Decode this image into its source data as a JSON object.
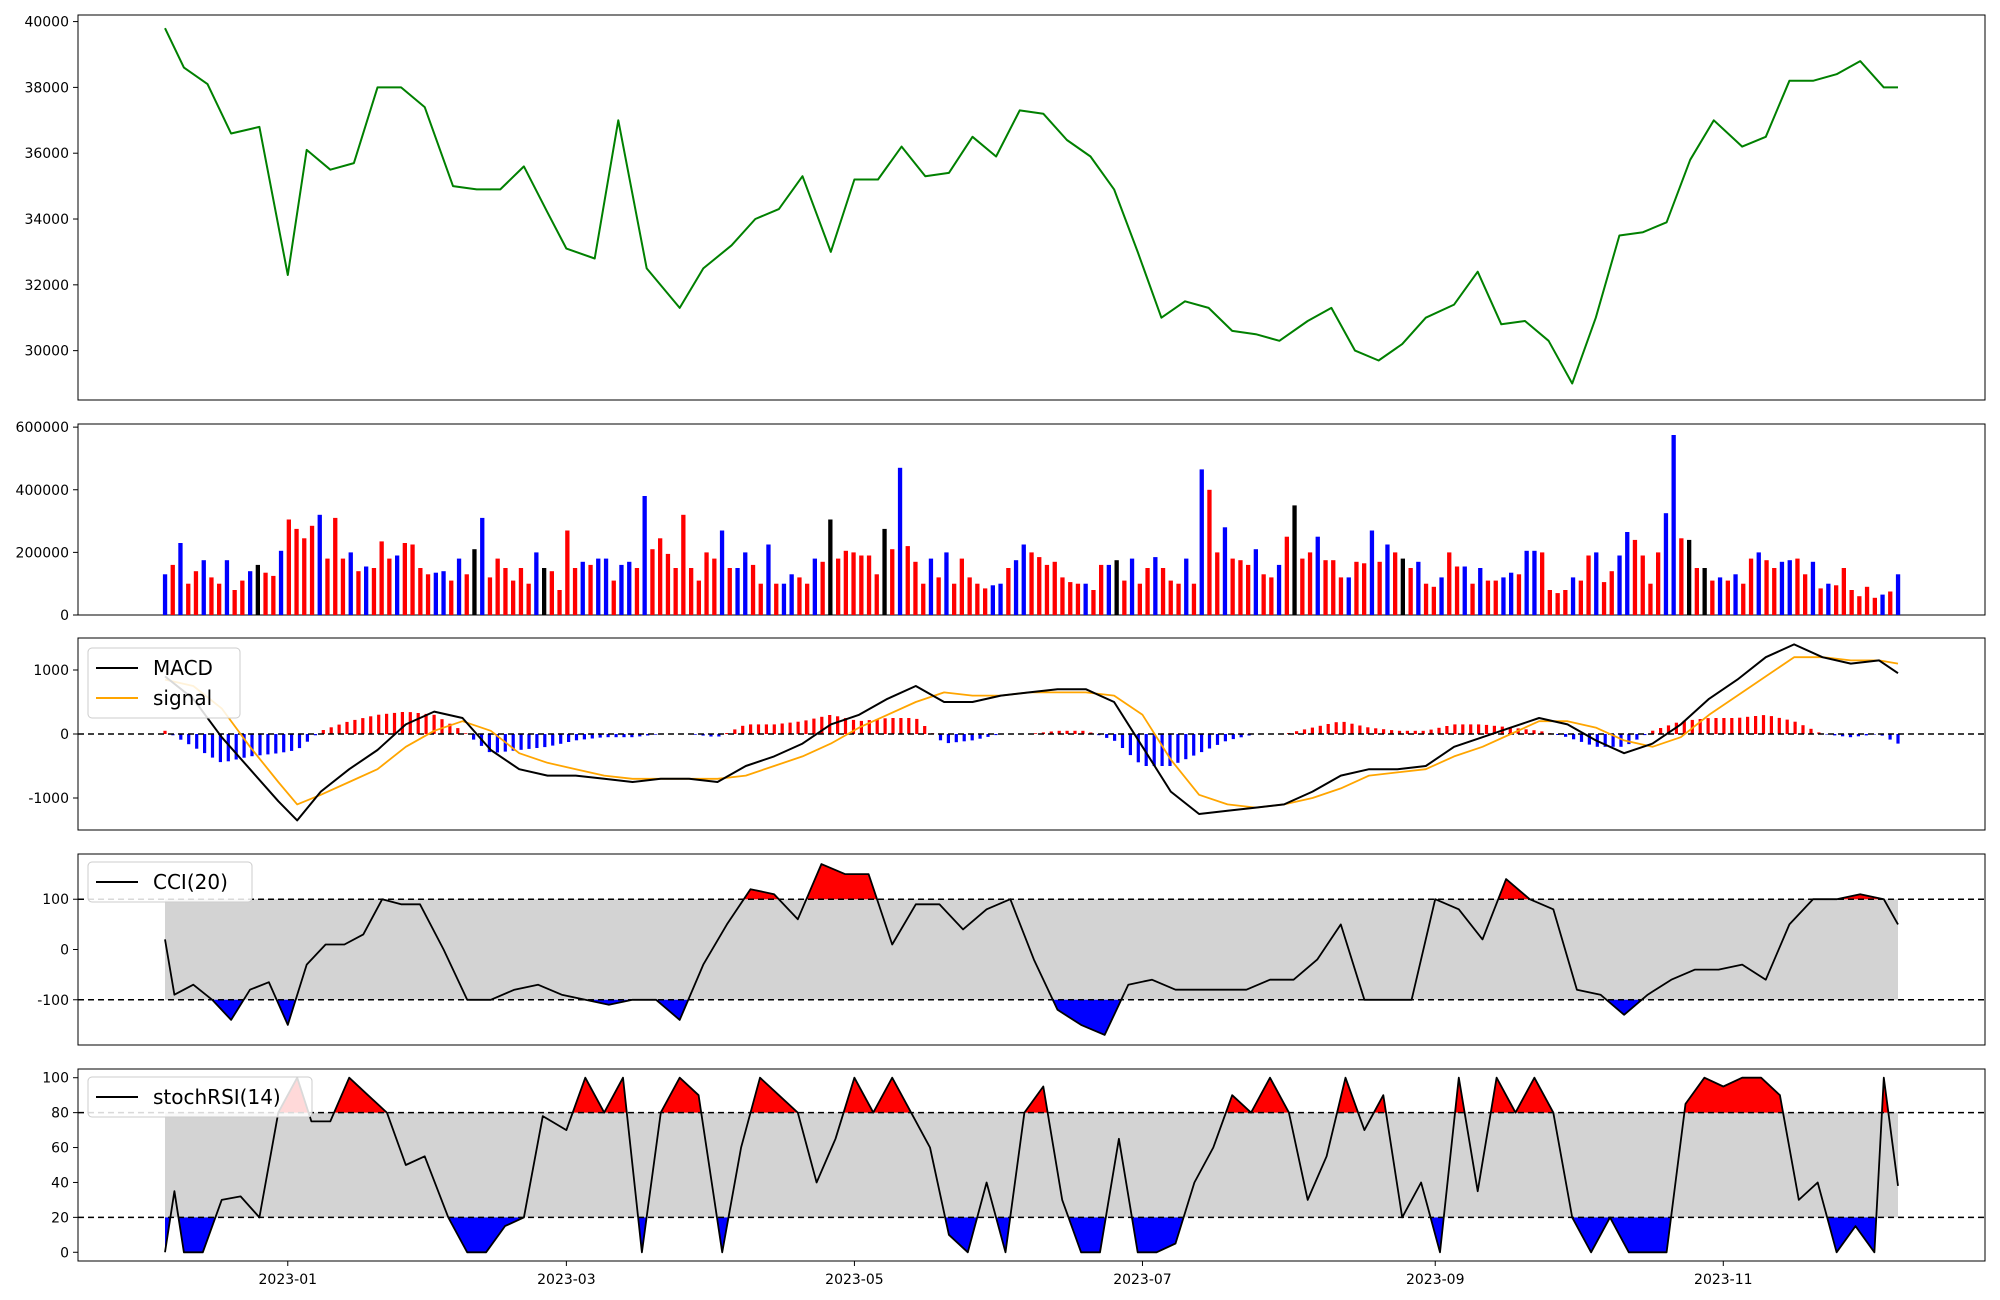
{
  "chart_data": [
    {
      "type": "line",
      "panel": "price",
      "x_dates": [
        "2022-12-06",
        "2022-12-10",
        "2022-12-15",
        "2022-12-20",
        "2022-12-26",
        "2023-01-01",
        "2023-01-05",
        "2023-01-10",
        "2023-01-15",
        "2023-01-20",
        "2023-01-25",
        "2023-01-30",
        "2023-02-05",
        "2023-02-10",
        "2023-02-15",
        "2023-02-20",
        "2023-02-25",
        "2023-03-01",
        "2023-03-07",
        "2023-03-12",
        "2023-03-18",
        "2023-03-25",
        "2023-03-30",
        "2023-04-05",
        "2023-04-10",
        "2023-04-15",
        "2023-04-20",
        "2023-04-26",
        "2023-05-01",
        "2023-05-06",
        "2023-05-11",
        "2023-05-16",
        "2023-05-21",
        "2023-05-26",
        "2023-05-31",
        "2023-06-05",
        "2023-06-10",
        "2023-06-15",
        "2023-06-20",
        "2023-06-25",
        "2023-06-30",
        "2023-07-05",
        "2023-07-10",
        "2023-07-15",
        "2023-07-20",
        "2023-07-25",
        "2023-07-30",
        "2023-08-05",
        "2023-08-10",
        "2023-08-15",
        "2023-08-20",
        "2023-08-25",
        "2023-08-30",
        "2023-09-05",
        "2023-09-10",
        "2023-09-15",
        "2023-09-20",
        "2023-09-25",
        "2023-09-30",
        "2023-10-05",
        "2023-10-10",
        "2023-10-15",
        "2023-10-20",
        "2023-10-25",
        "2023-10-30",
        "2023-11-05",
        "2023-11-10",
        "2023-11-15",
        "2023-11-20",
        "2023-11-25",
        "2023-11-30",
        "2023-12-05",
        "2023-12-08"
      ],
      "series": [
        {
          "values": [
            39800,
            38600,
            38100,
            36600,
            36800,
            32300,
            36100,
            35500,
            35700,
            38000,
            38000,
            37400,
            35000,
            34900,
            34900,
            35600,
            34200,
            33100,
            32800,
            37000,
            32500,
            31300,
            32500,
            33200,
            34000,
            34300,
            35300,
            33000,
            35200,
            35200,
            36200,
            35300,
            35400,
            36500,
            35900,
            37300,
            37200,
            36400,
            35900,
            34900,
            33000,
            31000,
            31500,
            31300,
            30600,
            30500,
            30300,
            30900,
            31300,
            30000,
            29700,
            30200,
            31000,
            31400,
            32400,
            30800,
            30900,
            30300,
            29000,
            31000,
            33500,
            33600,
            33900,
            35800,
            37000,
            36200,
            36500,
            38200,
            38200,
            38400,
            38800,
            38000,
            38000
          ]
        }
      ],
      "ylim": [
        28500,
        40200
      ],
      "yticks": [
        "30000",
        "32000",
        "34000",
        "36000",
        "38000",
        "40000"
      ]
    },
    {
      "type": "bar",
      "panel": "volume",
      "values": [
        130000,
        160000,
        230000,
        100000,
        140000,
        175000,
        120000,
        100000,
        175000,
        80000,
        110000,
        140000,
        160000,
        135000,
        125000,
        205000,
        305000,
        275000,
        245000,
        285000,
        320000,
        180000,
        310000,
        180000,
        200000,
        140000,
        155000,
        150000,
        235000,
        180000,
        190000,
        230000,
        225000,
        150000,
        130000,
        135000,
        140000,
        110000,
        180000,
        130000,
        210000,
        310000,
        120000,
        180000,
        150000,
        110000,
        150000,
        100000,
        200000,
        150000,
        140000,
        80000,
        270000,
        150000,
        170000,
        160000,
        180000,
        180000,
        110000,
        160000,
        170000,
        150000,
        380000,
        210000,
        245000,
        195000,
        150000,
        320000,
        150000,
        110000,
        200000,
        180000,
        270000,
        150000,
        150000,
        200000,
        160000,
        100000,
        225000,
        100000,
        100000,
        130000,
        120000,
        100000,
        180000,
        170000,
        305000,
        180000,
        205000,
        200000,
        190000,
        190000,
        130000,
        275000,
        210000,
        470000,
        220000,
        170000,
        100000,
        180000,
        120000,
        200000,
        100000,
        180000,
        120000,
        100000,
        85000,
        95000,
        100000,
        150000,
        175000,
        225000,
        200000,
        185000,
        160000,
        170000,
        120000,
        105000,
        100000,
        100000,
        80000,
        160000,
        160000,
        175000,
        110000,
        180000,
        100000,
        150000,
        185000,
        150000,
        110000,
        100000,
        180000,
        100000,
        465000,
        400000,
        200000,
        280000,
        180000,
        175000,
        160000,
        210000,
        130000,
        120000,
        160000,
        250000,
        350000,
        180000,
        200000,
        250000,
        175000,
        175000,
        120000,
        120000,
        170000,
        165000,
        270000,
        170000,
        225000,
        200000,
        180000,
        150000,
        170000,
        100000,
        90000,
        120000,
        200000,
        155000,
        155000,
        100000,
        150000,
        110000,
        110000,
        120000,
        135000,
        130000,
        205000,
        205000,
        200000,
        80000,
        70000,
        80000,
        120000,
        110000,
        190000,
        200000,
        105000,
        140000,
        190000,
        265000,
        240000,
        190000,
        100000,
        200000,
        325000,
        575000,
        245000,
        240000,
        150000,
        150000,
        110000,
        120000,
        110000,
        130000,
        100000,
        180000,
        200000,
        175000,
        150000,
        170000,
        175000,
        180000,
        130000,
        170000,
        85000,
        100000,
        95000,
        150000,
        80000,
        60000,
        90000,
        55000,
        65000,
        75000,
        130000
      ],
      "colors": [
        "blue",
        "red",
        "black"
      ],
      "ylim": [
        0,
        610000
      ],
      "yticks": [
        "0",
        "200000",
        "400000",
        "600000"
      ]
    },
    {
      "type": "line",
      "panel": "macd",
      "x_dates": [
        "2022-12-06",
        "2022-12-12",
        "2022-12-18",
        "2022-12-24",
        "2022-12-30",
        "2023-01-03",
        "2023-01-08",
        "2023-01-14",
        "2023-01-20",
        "2023-01-26",
        "2023-02-01",
        "2023-02-07",
        "2023-02-13",
        "2023-02-19",
        "2023-02-25",
        "2023-03-03",
        "2023-03-09",
        "2023-03-15",
        "2023-03-21",
        "2023-03-27",
        "2023-04-02",
        "2023-04-08",
        "2023-04-14",
        "2023-04-20",
        "2023-04-26",
        "2023-05-02",
        "2023-05-08",
        "2023-05-14",
        "2023-05-20",
        "2023-05-26",
        "2023-06-01",
        "2023-06-07",
        "2023-06-13",
        "2023-06-19",
        "2023-06-25",
        "2023-07-01",
        "2023-07-07",
        "2023-07-13",
        "2023-07-19",
        "2023-07-25",
        "2023-07-31",
        "2023-08-06",
        "2023-08-12",
        "2023-08-18",
        "2023-08-24",
        "2023-08-30",
        "2023-09-05",
        "2023-09-11",
        "2023-09-17",
        "2023-09-23",
        "2023-09-29",
        "2023-10-05",
        "2023-10-11",
        "2023-10-17",
        "2023-10-23",
        "2023-10-29",
        "2023-11-04",
        "2023-11-10",
        "2023-11-16",
        "2023-11-22",
        "2023-11-28",
        "2023-12-04",
        "2023-12-08"
      ],
      "series": [
        {
          "name": "MACD",
          "values": [
            900,
            550,
            -50,
            -550,
            -1050,
            -1350,
            -900,
            -550,
            -250,
            150,
            350,
            250,
            -250,
            -550,
            -650,
            -650,
            -700,
            -750,
            -700,
            -700,
            -750,
            -500,
            -350,
            -150,
            150,
            300,
            550,
            750,
            500,
            500,
            600,
            650,
            700,
            700,
            500,
            -200,
            -900,
            -1250,
            -1200,
            -1150,
            -1100,
            -900,
            -650,
            -550,
            -550,
            -500,
            -200,
            -50,
            100,
            250,
            150,
            -100,
            -300,
            -150,
            150,
            550,
            850,
            1200,
            1400,
            1200,
            1100,
            1150,
            950
          ]
        },
        {
          "name": "signal",
          "values": [
            850,
            750,
            400,
            -200,
            -750,
            -1100,
            -950,
            -750,
            -550,
            -200,
            50,
            200,
            50,
            -300,
            -450,
            -550,
            -650,
            -700,
            -700,
            -700,
            -700,
            -650,
            -500,
            -350,
            -150,
            100,
            300,
            500,
            650,
            600,
            600,
            650,
            650,
            650,
            600,
            300,
            -400,
            -950,
            -1100,
            -1150,
            -1100,
            -1000,
            -850,
            -650,
            -600,
            -550,
            -350,
            -200,
            0,
            200,
            200,
            100,
            -100,
            -200,
            -50,
            300,
            600,
            900,
            1200,
            1200,
            1150,
            1150,
            1100
          ]
        }
      ],
      "histogram_colors": [
        "red",
        "blue"
      ],
      "ylim": [
        -1500,
        1500
      ],
      "yticks": [
        "-1000",
        "0",
        "1000"
      ]
    },
    {
      "type": "area",
      "panel": "cci",
      "x_dates": [
        "2022-12-06",
        "2022-12-08",
        "2022-12-12",
        "2022-12-16",
        "2022-12-20",
        "2022-12-24",
        "2022-12-28",
        "2023-01-01",
        "2023-01-05",
        "2023-01-09",
        "2023-01-13",
        "2023-01-17",
        "2023-01-21",
        "2023-01-25",
        "2023-01-29",
        "2023-02-03",
        "2023-02-08",
        "2023-02-13",
        "2023-02-18",
        "2023-02-23",
        "2023-02-28",
        "2023-03-05",
        "2023-03-10",
        "2023-03-15",
        "2023-03-20",
        "2023-03-25",
        "2023-03-30",
        "2023-04-04",
        "2023-04-09",
        "2023-04-14",
        "2023-04-19",
        "2023-04-24",
        "2023-04-29",
        "2023-05-04",
        "2023-05-09",
        "2023-05-14",
        "2023-05-19",
        "2023-05-24",
        "2023-05-29",
        "2023-06-03",
        "2023-06-08",
        "2023-06-13",
        "2023-06-18",
        "2023-06-23",
        "2023-06-28",
        "2023-07-03",
        "2023-07-08",
        "2023-07-13",
        "2023-07-18",
        "2023-07-23",
        "2023-07-28",
        "2023-08-02",
        "2023-08-07",
        "2023-08-12",
        "2023-08-17",
        "2023-08-22",
        "2023-08-27",
        "2023-09-01",
        "2023-09-06",
        "2023-09-11",
        "2023-09-16",
        "2023-09-21",
        "2023-09-26",
        "2023-10-01",
        "2023-10-06",
        "2023-10-11",
        "2023-10-16",
        "2023-10-21",
        "2023-10-26",
        "2023-10-31",
        "2023-11-05",
        "2023-11-10",
        "2023-11-15",
        "2023-11-20",
        "2023-11-25",
        "2023-11-30",
        "2023-12-05",
        "2023-12-08"
      ],
      "series": [
        {
          "name": "CCI(20)",
          "values": [
            20,
            -90,
            -70,
            -100,
            -140,
            -80,
            -65,
            -150,
            -30,
            10,
            10,
            30,
            100,
            90,
            90,
            0,
            -100,
            -100,
            -80,
            -70,
            -90,
            -100,
            -110,
            -100,
            -100,
            -140,
            -30,
            50,
            120,
            110,
            60,
            170,
            150,
            150,
            10,
            90,
            90,
            40,
            80,
            100,
            -20,
            -120,
            -150,
            -170,
            -70,
            -60,
            -80,
            -80,
            -80,
            -80,
            -60,
            -60,
            -20,
            50,
            -100,
            -100,
            -100,
            100,
            80,
            20,
            140,
            100,
            80,
            -80,
            -90,
            -130,
            -90,
            -60,
            -40,
            -40,
            -30,
            -60,
            50,
            100,
            100,
            110,
            100,
            50
          ]
        }
      ],
      "thresholds": [
        "100",
        "-100"
      ],
      "ylim": [
        -190,
        190
      ],
      "yticks": [
        "-100",
        "0",
        "100"
      ]
    },
    {
      "type": "area",
      "panel": "stochrsi",
      "x_dates": [
        "2022-12-06",
        "2022-12-08",
        "2022-12-10",
        "2022-12-14",
        "2022-12-18",
        "2022-12-22",
        "2022-12-26",
        "2022-12-30",
        "2023-01-03",
        "2023-01-06",
        "2023-01-10",
        "2023-01-14",
        "2023-01-18",
        "2023-01-22",
        "2023-01-26",
        "2023-01-30",
        "2023-02-04",
        "2023-02-08",
        "2023-02-12",
        "2023-02-16",
        "2023-02-20",
        "2023-02-24",
        "2023-03-01",
        "2023-03-05",
        "2023-03-09",
        "2023-03-13",
        "2023-03-17",
        "2023-03-21",
        "2023-03-25",
        "2023-03-29",
        "2023-04-03",
        "2023-04-07",
        "2023-04-11",
        "2023-04-15",
        "2023-04-19",
        "2023-04-23",
        "2023-04-27",
        "2023-05-01",
        "2023-05-05",
        "2023-05-09",
        "2023-05-13",
        "2023-05-17",
        "2023-05-21",
        "2023-05-25",
        "2023-05-29",
        "2023-06-02",
        "2023-06-06",
        "2023-06-10",
        "2023-06-14",
        "2023-06-18",
        "2023-06-22",
        "2023-06-26",
        "2023-06-30",
        "2023-07-04",
        "2023-07-08",
        "2023-07-12",
        "2023-07-16",
        "2023-07-20",
        "2023-07-24",
        "2023-07-28",
        "2023-08-01",
        "2023-08-05",
        "2023-08-09",
        "2023-08-13",
        "2023-08-17",
        "2023-08-21",
        "2023-08-25",
        "2023-08-29",
        "2023-09-02",
        "2023-09-06",
        "2023-09-10",
        "2023-09-14",
        "2023-09-18",
        "2023-09-22",
        "2023-09-26",
        "2023-09-30",
        "2023-10-04",
        "2023-10-08",
        "2023-10-12",
        "2023-10-16",
        "2023-10-20",
        "2023-10-24",
        "2023-10-28",
        "2023-11-01",
        "2023-11-05",
        "2023-11-09",
        "2023-11-13",
        "2023-11-17",
        "2023-11-21",
        "2023-11-25",
        "2023-11-29",
        "2023-12-03",
        "2023-12-05",
        "2023-12-08"
      ],
      "series": [
        {
          "name": "stochRSI(14)",
          "values": [
            0,
            35,
            0,
            0,
            30,
            32,
            20,
            80,
            100,
            75,
            75,
            100,
            90,
            80,
            50,
            55,
            20,
            0,
            0,
            15,
            20,
            78,
            70,
            100,
            80,
            100,
            0,
            80,
            100,
            90,
            0,
            60,
            100,
            90,
            80,
            40,
            65,
            100,
            80,
            100,
            80,
            60,
            10,
            0,
            40,
            0,
            80,
            95,
            30,
            0,
            0,
            65,
            0,
            0,
            5,
            40,
            60,
            90,
            80,
            100,
            80,
            30,
            55,
            100,
            70,
            90,
            20,
            40,
            0,
            100,
            35,
            100,
            80,
            100,
            80,
            20,
            0,
            20,
            0,
            0,
            0,
            85,
            100,
            95,
            100,
            100,
            90,
            30,
            40,
            0,
            15,
            0,
            100,
            38
          ]
        }
      ],
      "thresholds": [
        "80",
        "20"
      ],
      "ylim": [
        -5,
        105
      ],
      "yticks": [
        "0",
        "20",
        "40",
        "60",
        "80",
        "100"
      ]
    }
  ],
  "x_axis": {
    "start": "2022-12-06",
    "end": "2023-12-08",
    "ticks": [
      "2023-01",
      "2023-03",
      "2023-05",
      "2023-07",
      "2023-09",
      "2023-11"
    ]
  }
}
